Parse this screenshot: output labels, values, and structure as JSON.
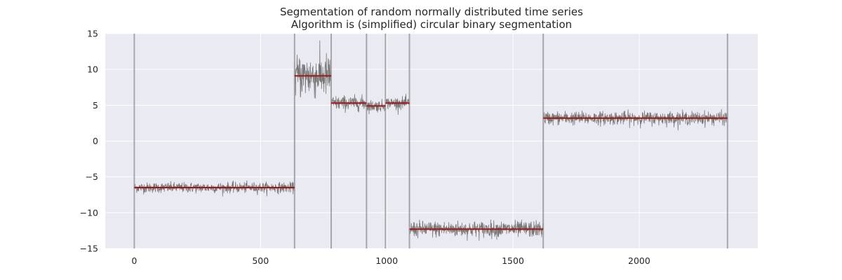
{
  "chart_data": {
    "type": "line",
    "title": "Segmentation of random normally distributed time series",
    "subtitle": "Algorithm is (simplified) circular binary segmentation",
    "xlabel": "",
    "ylabel": "",
    "xlim": [
      -115,
      2470
    ],
    "ylim": [
      -15,
      15
    ],
    "grid": true,
    "x_ticks": [
      {
        "value": 0,
        "label": "0"
      },
      {
        "value": 500,
        "label": "500"
      },
      {
        "value": 1000,
        "label": "1000"
      },
      {
        "value": 1500,
        "label": "1500"
      },
      {
        "value": 2000,
        "label": "2000"
      }
    ],
    "y_ticks": [
      {
        "value": 15,
        "label": "15"
      },
      {
        "value": 10,
        "label": "10"
      },
      {
        "value": 5,
        "label": "5"
      },
      {
        "value": 0,
        "label": "0"
      },
      {
        "value": -5,
        "label": "−5"
      },
      {
        "value": -10,
        "label": "−10"
      },
      {
        "value": -15,
        "label": "−15"
      }
    ],
    "breakpoints": [
      0,
      635,
      780,
      920,
      995,
      1090,
      1620,
      2350
    ],
    "segments": [
      {
        "start": 0,
        "end": 635,
        "mean": -6.5,
        "noise_sd": 0.35
      },
      {
        "start": 635,
        "end": 780,
        "mean": 9.1,
        "noise_sd": 1.5
      },
      {
        "start": 780,
        "end": 920,
        "mean": 5.3,
        "noise_sd": 0.5
      },
      {
        "start": 920,
        "end": 995,
        "mean": 4.9,
        "noise_sd": 0.4
      },
      {
        "start": 995,
        "end": 1090,
        "mean": 5.3,
        "noise_sd": 0.4
      },
      {
        "start": 1090,
        "end": 1620,
        "mean": -12.3,
        "noise_sd": 0.55
      },
      {
        "start": 1620,
        "end": 2350,
        "mean": 3.2,
        "noise_sd": 0.45
      }
    ],
    "colors": {
      "background": "#eaeaf2",
      "grid": "#ffffff",
      "series": "#777777",
      "segment_mean": "#a31515",
      "breakpoint": "#a0a0a4"
    }
  }
}
